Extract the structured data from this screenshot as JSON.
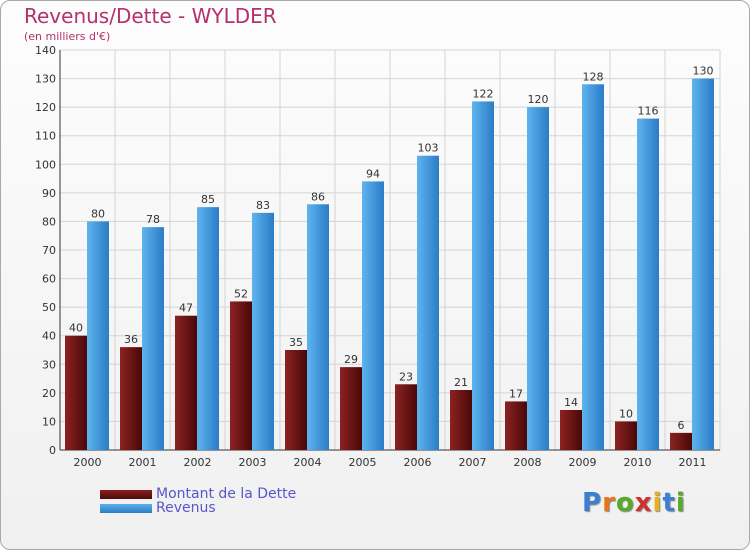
{
  "header": {
    "title": "Revenus/Dette - WYLDER",
    "subtitle": "(en milliers d'€)"
  },
  "chart_data": {
    "type": "bar",
    "categories": [
      "2000",
      "2001",
      "2002",
      "2003",
      "2004",
      "2005",
      "2006",
      "2007",
      "2008",
      "2009",
      "2010",
      "2011"
    ],
    "series": [
      {
        "name": "Montant de la Dette",
        "color": "#7a1a1a",
        "values": [
          40,
          36,
          47,
          52,
          35,
          29,
          23,
          21,
          17,
          14,
          10,
          6
        ]
      },
      {
        "name": "Revenus",
        "color": "#4a9fe0",
        "values": [
          80,
          78,
          85,
          83,
          86,
          94,
          103,
          122,
          120,
          128,
          116,
          130
        ]
      }
    ],
    "ylim": [
      0,
      140
    ],
    "yticks": [
      "0",
      "10",
      "20",
      "30",
      "40",
      "50",
      "60",
      "70",
      "80",
      "90",
      "100",
      "110",
      "120",
      "130",
      "140"
    ],
    "grid": true,
    "legend_position": "bottom-left"
  },
  "legend": {
    "debt_label": "Montant de la Dette",
    "revenue_label": "Revenus"
  },
  "logo": {
    "letters": [
      "P",
      "r",
      "o",
      "x",
      "i",
      "t",
      "i"
    ],
    "colors": [
      "#3b7fd4",
      "#e8741c",
      "#5aaa2a",
      "#d23030",
      "#e8b01c",
      "#3b7fd4",
      "#5aaa2a"
    ]
  }
}
